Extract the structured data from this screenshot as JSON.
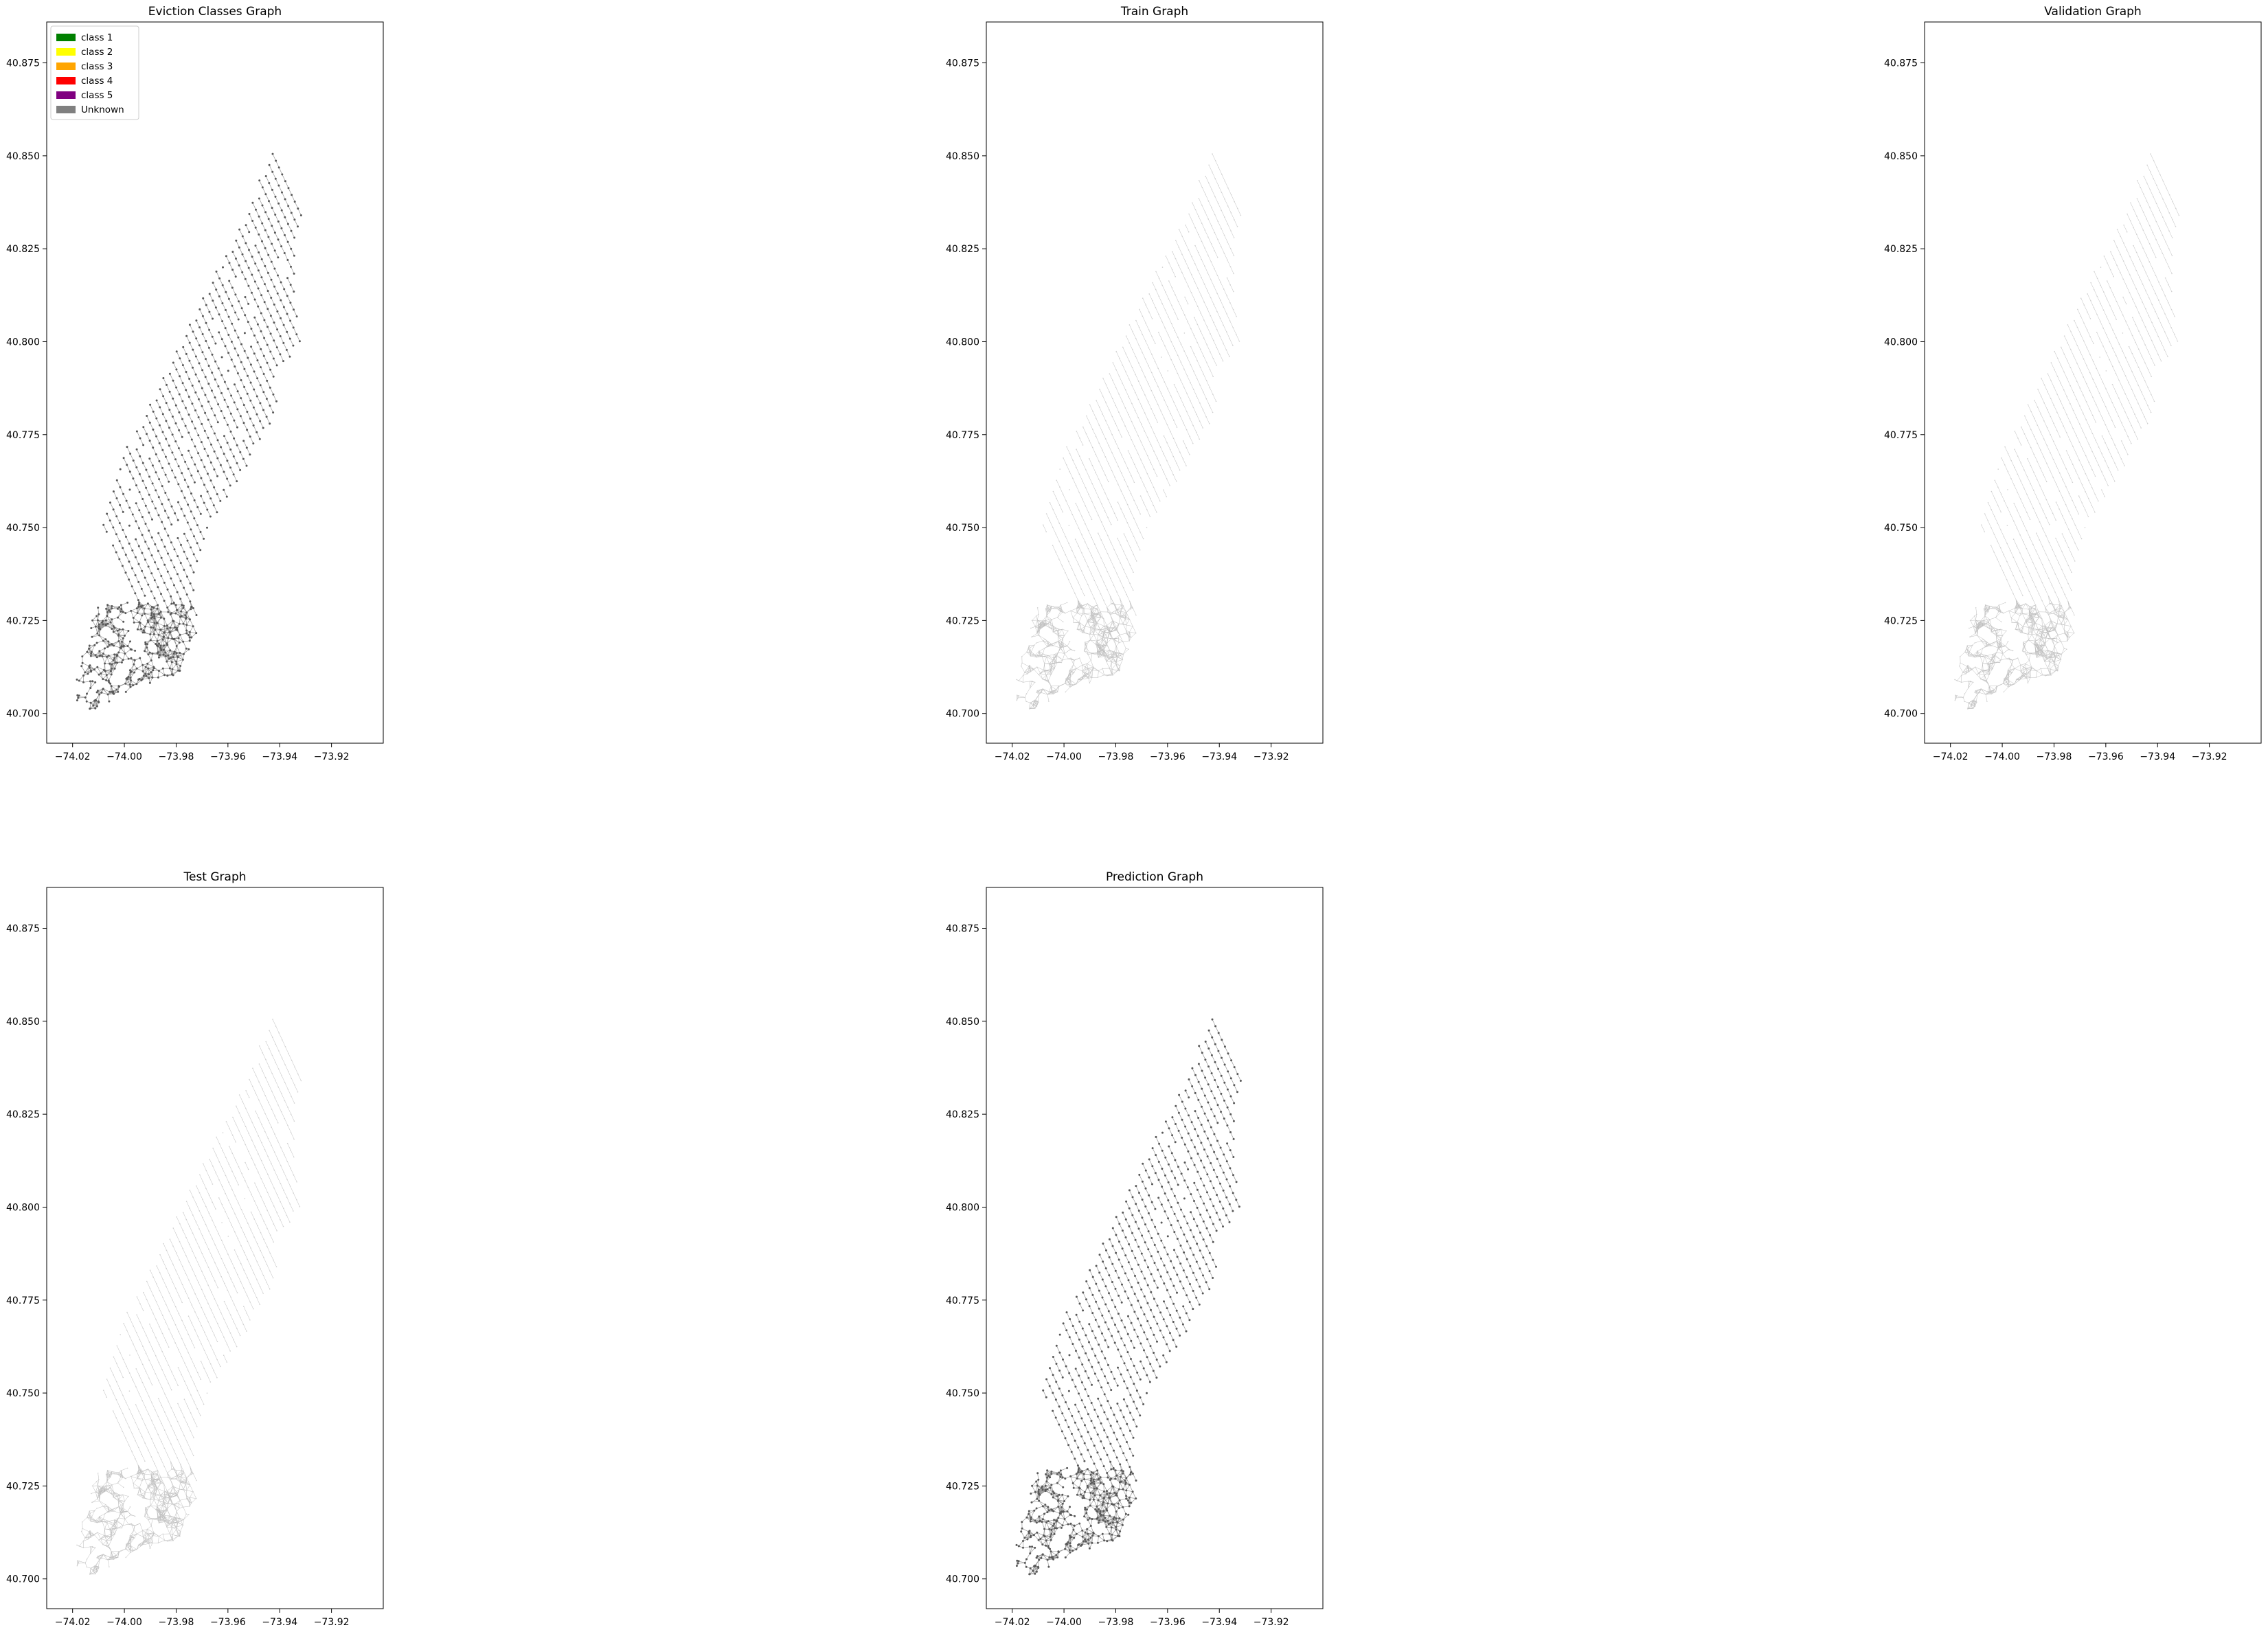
{
  "figure": {
    "legend": [
      {
        "label": "class 1",
        "color": "#008000"
      },
      {
        "label": "class 2",
        "color": "#ffff00"
      },
      {
        "label": "class 3",
        "color": "#ffa500"
      },
      {
        "label": "class 4",
        "color": "#ff0000"
      },
      {
        "label": "class 5",
        "color": "#800080"
      },
      {
        "label": "Unknown",
        "color": "#808080"
      }
    ],
    "x_ticks": [
      "−74.02",
      "−74.00",
      "−73.98",
      "−73.96",
      "−73.94",
      "−73.92"
    ],
    "y_ticks": [
      "40.700",
      "40.725",
      "40.750",
      "40.775",
      "40.800",
      "40.825",
      "40.850",
      "40.875"
    ]
  },
  "chart_data": [
    {
      "type": "scatter",
      "title": "Eviction Classes Graph",
      "style": "dense",
      "legend_placement": "top-left",
      "xlim": [
        -74.03,
        -73.9
      ],
      "ylim": [
        40.692,
        40.886
      ],
      "grid": false
    },
    {
      "type": "scatter",
      "title": "Train Graph",
      "style": "sparse",
      "xlim": [
        -74.03,
        -73.9
      ],
      "ylim": [
        40.692,
        40.886
      ],
      "grid": false
    },
    {
      "type": "scatter",
      "title": "Validation Graph",
      "style": "sparse",
      "xlim": [
        -74.03,
        -73.9
      ],
      "ylim": [
        40.692,
        40.886
      ],
      "grid": false
    },
    {
      "type": "scatter",
      "title": "Test Graph",
      "style": "sparse",
      "xlim": [
        -74.03,
        -73.9
      ],
      "ylim": [
        40.692,
        40.886
      ],
      "grid": false
    },
    {
      "type": "scatter",
      "title": "Prediction Graph",
      "style": "dense",
      "xlim": [
        -74.03,
        -73.9
      ],
      "ylim": [
        40.692,
        40.886
      ],
      "grid": false
    }
  ]
}
